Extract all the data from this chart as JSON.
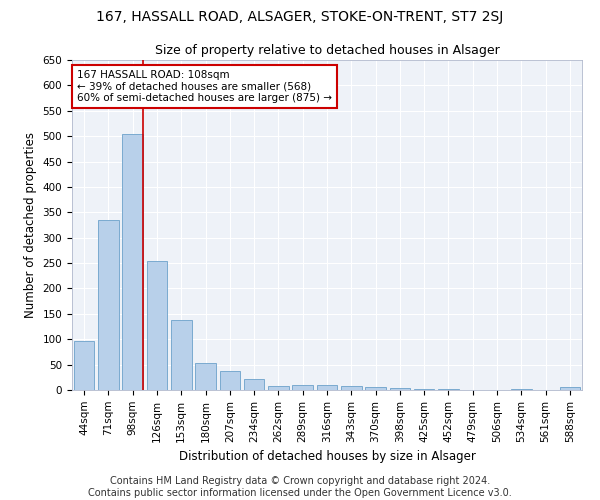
{
  "title_line1": "167, HASSALL ROAD, ALSAGER, STOKE-ON-TRENT, ST7 2SJ",
  "title_line2": "Size of property relative to detached houses in Alsager",
  "xlabel": "Distribution of detached houses by size in Alsager",
  "ylabel": "Number of detached properties",
  "categories": [
    "44sqm",
    "71sqm",
    "98sqm",
    "126sqm",
    "153sqm",
    "180sqm",
    "207sqm",
    "234sqm",
    "262sqm",
    "289sqm",
    "316sqm",
    "343sqm",
    "370sqm",
    "398sqm",
    "425sqm",
    "452sqm",
    "479sqm",
    "506sqm",
    "534sqm",
    "561sqm",
    "588sqm"
  ],
  "values": [
    97,
    335,
    505,
    255,
    138,
    53,
    37,
    21,
    8,
    10,
    10,
    8,
    5,
    4,
    1,
    1,
    0,
    0,
    1,
    0,
    5
  ],
  "bar_color": "#b8d0ea",
  "bar_edge_color": "#7aaacf",
  "vline_color": "#cc0000",
  "vline_x": 2.43,
  "annotation_text": "167 HASSALL ROAD: 108sqm\n← 39% of detached houses are smaller (568)\n60% of semi-detached houses are larger (875) →",
  "annotation_box_color": "#ffffff",
  "annotation_box_edge": "#cc0000",
  "ylim": [
    0,
    650
  ],
  "yticks": [
    0,
    50,
    100,
    150,
    200,
    250,
    300,
    350,
    400,
    450,
    500,
    550,
    600,
    650
  ],
  "footer_text": "Contains HM Land Registry data © Crown copyright and database right 2024.\nContains public sector information licensed under the Open Government Licence v3.0.",
  "bg_color": "#eef2f8",
  "grid_color": "#ffffff",
  "fig_bg": "#ffffff",
  "title_fontsize": 10,
  "subtitle_fontsize": 9,
  "label_fontsize": 8.5,
  "tick_fontsize": 7.5,
  "footer_fontsize": 7,
  "annot_fontsize": 7.5
}
